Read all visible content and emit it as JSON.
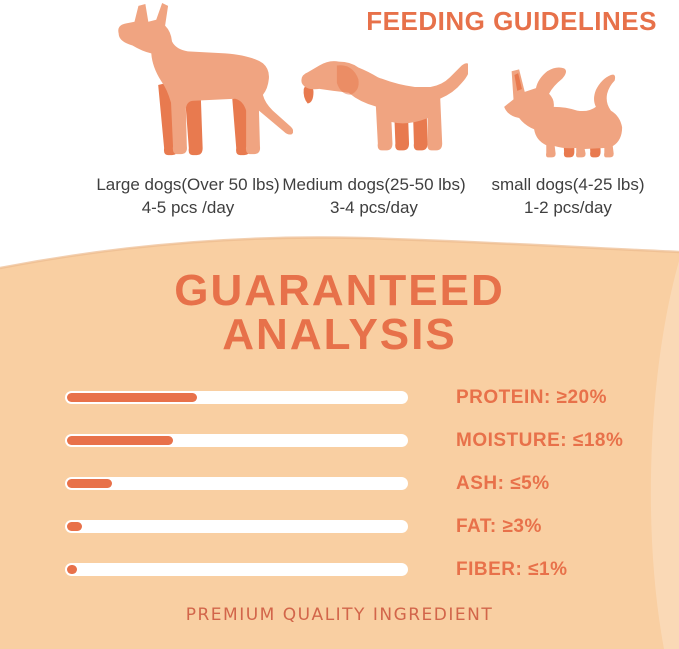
{
  "header": {
    "title": "FEEDING GUIDELINES"
  },
  "feeding": {
    "dogs": [
      {
        "icon": "large-dog-icon",
        "size_label": "Large dogs(Over 50 lbs)",
        "serving": "4-5 pcs /day"
      },
      {
        "icon": "medium-dog-icon",
        "size_label": "Medium dogs(25-50 lbs)",
        "serving": "3-4 pcs/day"
      },
      {
        "icon": "small-dog-icon",
        "size_label": "small dogs(4-25 lbs)",
        "serving": "1-2 pcs/day"
      }
    ]
  },
  "analysis": {
    "title_line1": "GUARANTEED",
    "title_line2": "ANALYSIS",
    "items": [
      {
        "label": "PROTEIN: ≥20%",
        "fill_percent": 38
      },
      {
        "label": "MOISTURE: ≤18%",
        "fill_percent": 31
      },
      {
        "label": "ASH: ≤5%",
        "fill_percent": 13
      },
      {
        "label": "FAT: ≥3%",
        "fill_percent": 4.5
      },
      {
        "label": "FIBER: ≤1%",
        "fill_percent": 3
      }
    ],
    "footer": "PREMIUM QUALITY INGREDIENT"
  },
  "chart_data": {
    "type": "bar",
    "title": "GUARANTEED ANALYSIS",
    "categories": [
      "PROTEIN",
      "MOISTURE",
      "ASH",
      "FAT",
      "FIBER"
    ],
    "values": [
      20,
      18,
      5,
      3,
      1
    ],
    "value_labels": [
      "≥20%",
      "≤18%",
      "≤5%",
      "≥3%",
      "≤1%"
    ],
    "bar_fill_fractions": [
      0.38,
      0.31,
      0.13,
      0.045,
      0.03
    ],
    "legend_position": "right-of-bars",
    "grid": false
  },
  "colors": {
    "accent": "#E7714A",
    "panel_bg": "#F9CFA2",
    "panel_edge": "#EDBA8E",
    "bar_fill": "#E8714A",
    "bar_track": "#FFFFFF",
    "dog_body": "#F0A481",
    "dog_accent": "#E87A4F",
    "dog_text": "#3F3F3F",
    "footer_text": "#D2654A"
  }
}
